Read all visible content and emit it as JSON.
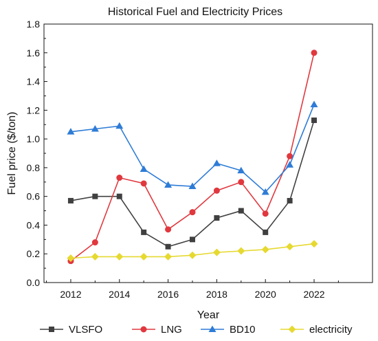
{
  "chart_data": {
    "type": "line",
    "title": "Historical Fuel and Electricity Prices",
    "xlabel": "Year",
    "ylabel": "Fuel price ($/ton)",
    "x": [
      2012,
      2013,
      2014,
      2015,
      2016,
      2017,
      2018,
      2019,
      2020,
      2021,
      2022
    ],
    "xlim": [
      2010.9,
      2024.4
    ],
    "ylim": [
      0,
      1.8
    ],
    "xticks": [
      2012,
      2014,
      2016,
      2018,
      2020,
      2022
    ],
    "yticks": [
      0.0,
      0.2,
      0.4,
      0.6,
      0.8,
      1.0,
      1.2,
      1.4,
      1.6,
      1.8
    ],
    "ytick_labels": [
      "0.0",
      "0.2",
      "0.4",
      "0.6",
      "0.8",
      "1.0",
      "1.2",
      "1.4",
      "1.6",
      "1.8"
    ],
    "grid": false,
    "legend_position": "bottom",
    "series": [
      {
        "name": "VLSFO",
        "color": "#404040",
        "marker": "square",
        "values": [
          0.57,
          0.6,
          0.6,
          0.35,
          0.25,
          0.3,
          0.45,
          0.5,
          0.35,
          0.57,
          1.13
        ]
      },
      {
        "name": "LNG",
        "color": "#e0383e",
        "marker": "circle",
        "values": [
          0.15,
          0.28,
          0.73,
          0.69,
          0.37,
          0.49,
          0.64,
          0.7,
          0.48,
          0.88,
          1.6
        ]
      },
      {
        "name": "BD10",
        "color": "#2e7cd6",
        "marker": "triangle",
        "values": [
          1.05,
          1.07,
          1.09,
          0.79,
          0.68,
          0.67,
          0.83,
          0.78,
          0.63,
          0.82,
          1.24
        ]
      },
      {
        "name": "electricity",
        "color": "#e6d930",
        "marker": "diamond",
        "values": [
          0.17,
          0.18,
          0.18,
          0.18,
          0.18,
          0.19,
          0.21,
          0.22,
          0.23,
          0.25,
          0.27
        ]
      }
    ]
  }
}
